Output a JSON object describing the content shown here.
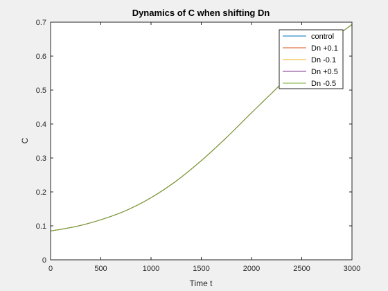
{
  "chart_data": {
    "type": "line",
    "title": "Dynamics of C when shifting Dn",
    "xlabel": "Time t",
    "ylabel": "C",
    "xlim": [
      0,
      3000
    ],
    "ylim": [
      0,
      0.7
    ],
    "xticks": [
      0,
      500,
      1000,
      1500,
      2000,
      2500,
      3000
    ],
    "yticks": [
      0,
      0.1,
      0.2,
      0.3,
      0.4,
      0.5,
      0.6,
      0.7
    ],
    "xtick_labels": [
      "0",
      "500",
      "1000",
      "1500",
      "2000",
      "2500",
      "3000"
    ],
    "ytick_labels": [
      "0",
      "0.1",
      "0.2",
      "0.3",
      "0.4",
      "0.5",
      "0.6",
      "0.7"
    ],
    "grid": false,
    "legend_position": "top-right",
    "x": [
      0,
      250,
      500,
      750,
      1000,
      1250,
      1500,
      1750,
      2000,
      2250,
      2500,
      2750,
      3000
    ],
    "series": [
      {
        "name": "control",
        "color": "#0072BD",
        "values": [
          0.085,
          0.098,
          0.118,
          0.145,
          0.183,
          0.232,
          0.292,
          0.36,
          0.433,
          0.505,
          0.575,
          0.638,
          0.693
        ]
      },
      {
        "name": "Dn +0.1",
        "color": "#D95319",
        "values": [
          0.085,
          0.098,
          0.118,
          0.145,
          0.183,
          0.232,
          0.292,
          0.36,
          0.433,
          0.505,
          0.575,
          0.638,
          0.693
        ]
      },
      {
        "name": "Dn -0.1",
        "color": "#EDB120",
        "values": [
          0.085,
          0.098,
          0.118,
          0.145,
          0.183,
          0.232,
          0.292,
          0.36,
          0.433,
          0.505,
          0.575,
          0.638,
          0.693
        ]
      },
      {
        "name": "Dn +0.5",
        "color": "#7E2F8E",
        "values": [
          0.085,
          0.098,
          0.118,
          0.145,
          0.183,
          0.232,
          0.292,
          0.36,
          0.433,
          0.505,
          0.575,
          0.638,
          0.693
        ]
      },
      {
        "name": "Dn -0.5",
        "color": "#77AC30",
        "values": [
          0.085,
          0.098,
          0.118,
          0.145,
          0.183,
          0.232,
          0.292,
          0.36,
          0.433,
          0.505,
          0.575,
          0.638,
          0.693
        ]
      }
    ]
  }
}
